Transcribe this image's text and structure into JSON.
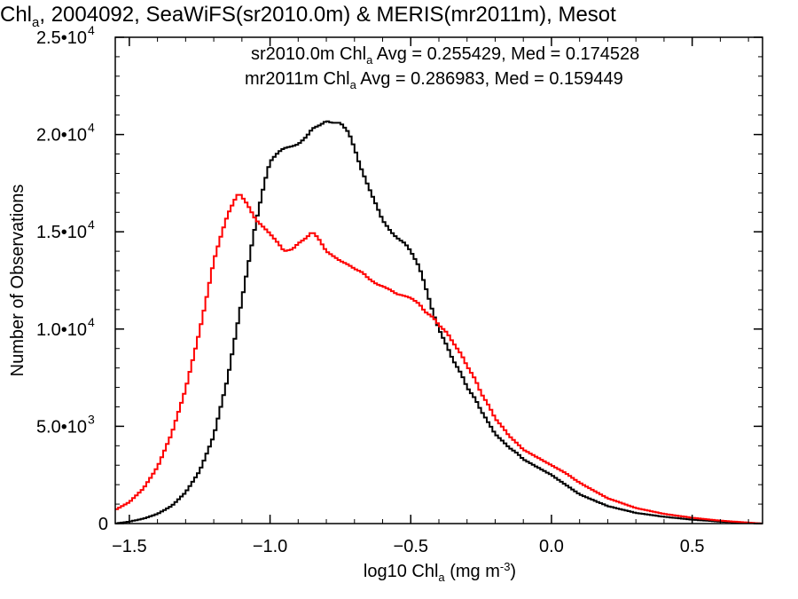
{
  "chart_data": {
    "type": "line",
    "title_parts": {
      "lead": "Chl",
      "sub": "a",
      "rest": ", 2004092, SeaWiFS(sr2010.0m) & MERIS(mr2011m), Mesot"
    },
    "xlabel_parts": {
      "lead": "log10 Chl",
      "sub": "a",
      "mid": " (mg m",
      "sup": "-3",
      "tail": ")"
    },
    "ylabel": "Number of Observations",
    "xlim": [
      -1.55,
      0.75
    ],
    "ylim": [
      0,
      25000
    ],
    "x_ticks": [
      {
        "value": -1.5,
        "label": "−1.5"
      },
      {
        "value": -1.0,
        "label": "−1.0"
      },
      {
        "value": -0.5,
        "label": "−0.5"
      },
      {
        "value": 0.0,
        "label": "0.0"
      },
      {
        "value": 0.5,
        "label": "0.5"
      }
    ],
    "y_ticks": [
      {
        "value": 0,
        "mant": "0",
        "exp": ""
      },
      {
        "value": 5000,
        "mant": "5.0•10",
        "exp": "3"
      },
      {
        "value": 10000,
        "mant": "1.0•10",
        "exp": "4"
      },
      {
        "value": 15000,
        "mant": "1.5•10",
        "exp": "4"
      },
      {
        "value": 20000,
        "mant": "2.0•10",
        "exp": "4"
      },
      {
        "value": 25000,
        "mant": "2.5•10",
        "exp": "4"
      }
    ],
    "series": [
      {
        "name": "sr2010.0m",
        "color": "#000000",
        "legend": {
          "a": "sr2010.0m Chl",
          "sub": "a",
          "b": " Avg = 0.255429, Med = 0.174528"
        },
        "points": [
          [
            -1.55,
            0
          ],
          [
            -1.5,
            100
          ],
          [
            -1.45,
            250
          ],
          [
            -1.4,
            500
          ],
          [
            -1.35,
            900
          ],
          [
            -1.3,
            1600
          ],
          [
            -1.25,
            2700
          ],
          [
            -1.2,
            4500
          ],
          [
            -1.15,
            7500
          ],
          [
            -1.1,
            11500
          ],
          [
            -1.05,
            15500
          ],
          [
            -1.02,
            17500
          ],
          [
            -1.0,
            18600
          ],
          [
            -0.97,
            19100
          ],
          [
            -0.95,
            19300
          ],
          [
            -0.92,
            19400
          ],
          [
            -0.9,
            19500
          ],
          [
            -0.87,
            19900
          ],
          [
            -0.85,
            20300
          ],
          [
            -0.82,
            20500
          ],
          [
            -0.8,
            20700
          ],
          [
            -0.78,
            20600
          ],
          [
            -0.75,
            20600
          ],
          [
            -0.72,
            20100
          ],
          [
            -0.7,
            19300
          ],
          [
            -0.68,
            18400
          ],
          [
            -0.65,
            17300
          ],
          [
            -0.62,
            16300
          ],
          [
            -0.6,
            15600
          ],
          [
            -0.57,
            15000
          ],
          [
            -0.55,
            14700
          ],
          [
            -0.52,
            14400
          ],
          [
            -0.5,
            14000
          ],
          [
            -0.47,
            13200
          ],
          [
            -0.45,
            12300
          ],
          [
            -0.42,
            10800
          ],
          [
            -0.4,
            10000
          ],
          [
            -0.37,
            9100
          ],
          [
            -0.35,
            8400
          ],
          [
            -0.32,
            7700
          ],
          [
            -0.3,
            7000
          ],
          [
            -0.27,
            6400
          ],
          [
            -0.25,
            5800
          ],
          [
            -0.22,
            5100
          ],
          [
            -0.2,
            4600
          ],
          [
            -0.17,
            4200
          ],
          [
            -0.15,
            3900
          ],
          [
            -0.12,
            3600
          ],
          [
            -0.1,
            3300
          ],
          [
            -0.05,
            2900
          ],
          [
            0.0,
            2500
          ],
          [
            0.05,
            2000
          ],
          [
            0.1,
            1500
          ],
          [
            0.15,
            1200
          ],
          [
            0.2,
            900
          ],
          [
            0.3,
            550
          ],
          [
            0.4,
            350
          ],
          [
            0.5,
            200
          ],
          [
            0.6,
            100
          ],
          [
            0.75,
            0
          ]
        ]
      },
      {
        "name": "mr2011m",
        "color": "#ff0000",
        "legend": {
          "a": "mr2011m Chl",
          "sub": "a",
          "b": " Avg = 0.286983, Med = 0.159449"
        },
        "points": [
          [
            -1.55,
            700
          ],
          [
            -1.5,
            1100
          ],
          [
            -1.45,
            1800
          ],
          [
            -1.4,
            2900
          ],
          [
            -1.35,
            4600
          ],
          [
            -1.3,
            6900
          ],
          [
            -1.25,
            9900
          ],
          [
            -1.22,
            12000
          ],
          [
            -1.2,
            13500
          ],
          [
            -1.17,
            15000
          ],
          [
            -1.15,
            15900
          ],
          [
            -1.12,
            16800
          ],
          [
            -1.11,
            17000
          ],
          [
            -1.08,
            16400
          ],
          [
            -1.05,
            15600
          ],
          [
            -1.02,
            15200
          ],
          [
            -1.0,
            14900
          ],
          [
            -0.97,
            14400
          ],
          [
            -0.95,
            14000
          ],
          [
            -0.92,
            14100
          ],
          [
            -0.9,
            14400
          ],
          [
            -0.87,
            14700
          ],
          [
            -0.85,
            15000
          ],
          [
            -0.83,
            14700
          ],
          [
            -0.8,
            14000
          ],
          [
            -0.77,
            13700
          ],
          [
            -0.75,
            13500
          ],
          [
            -0.72,
            13300
          ],
          [
            -0.7,
            13100
          ],
          [
            -0.67,
            12900
          ],
          [
            -0.65,
            12600
          ],
          [
            -0.62,
            12300
          ],
          [
            -0.6,
            12200
          ],
          [
            -0.57,
            12000
          ],
          [
            -0.55,
            11800
          ],
          [
            -0.52,
            11700
          ],
          [
            -0.5,
            11600
          ],
          [
            -0.47,
            11300
          ],
          [
            -0.45,
            10900
          ],
          [
            -0.42,
            10600
          ],
          [
            -0.4,
            10200
          ],
          [
            -0.37,
            9800
          ],
          [
            -0.35,
            9300
          ],
          [
            -0.32,
            8700
          ],
          [
            -0.3,
            8100
          ],
          [
            -0.27,
            7400
          ],
          [
            -0.25,
            6700
          ],
          [
            -0.22,
            6000
          ],
          [
            -0.2,
            5400
          ],
          [
            -0.17,
            4900
          ],
          [
            -0.15,
            4500
          ],
          [
            -0.12,
            4100
          ],
          [
            -0.1,
            3800
          ],
          [
            -0.05,
            3400
          ],
          [
            0.0,
            3000
          ],
          [
            0.05,
            2600
          ],
          [
            0.1,
            2100
          ],
          [
            0.15,
            1700
          ],
          [
            0.2,
            1300
          ],
          [
            0.3,
            800
          ],
          [
            0.4,
            500
          ],
          [
            0.5,
            300
          ],
          [
            0.6,
            150
          ],
          [
            0.75,
            0
          ]
        ]
      }
    ],
    "grid": false,
    "legend_position": "top-right"
  }
}
